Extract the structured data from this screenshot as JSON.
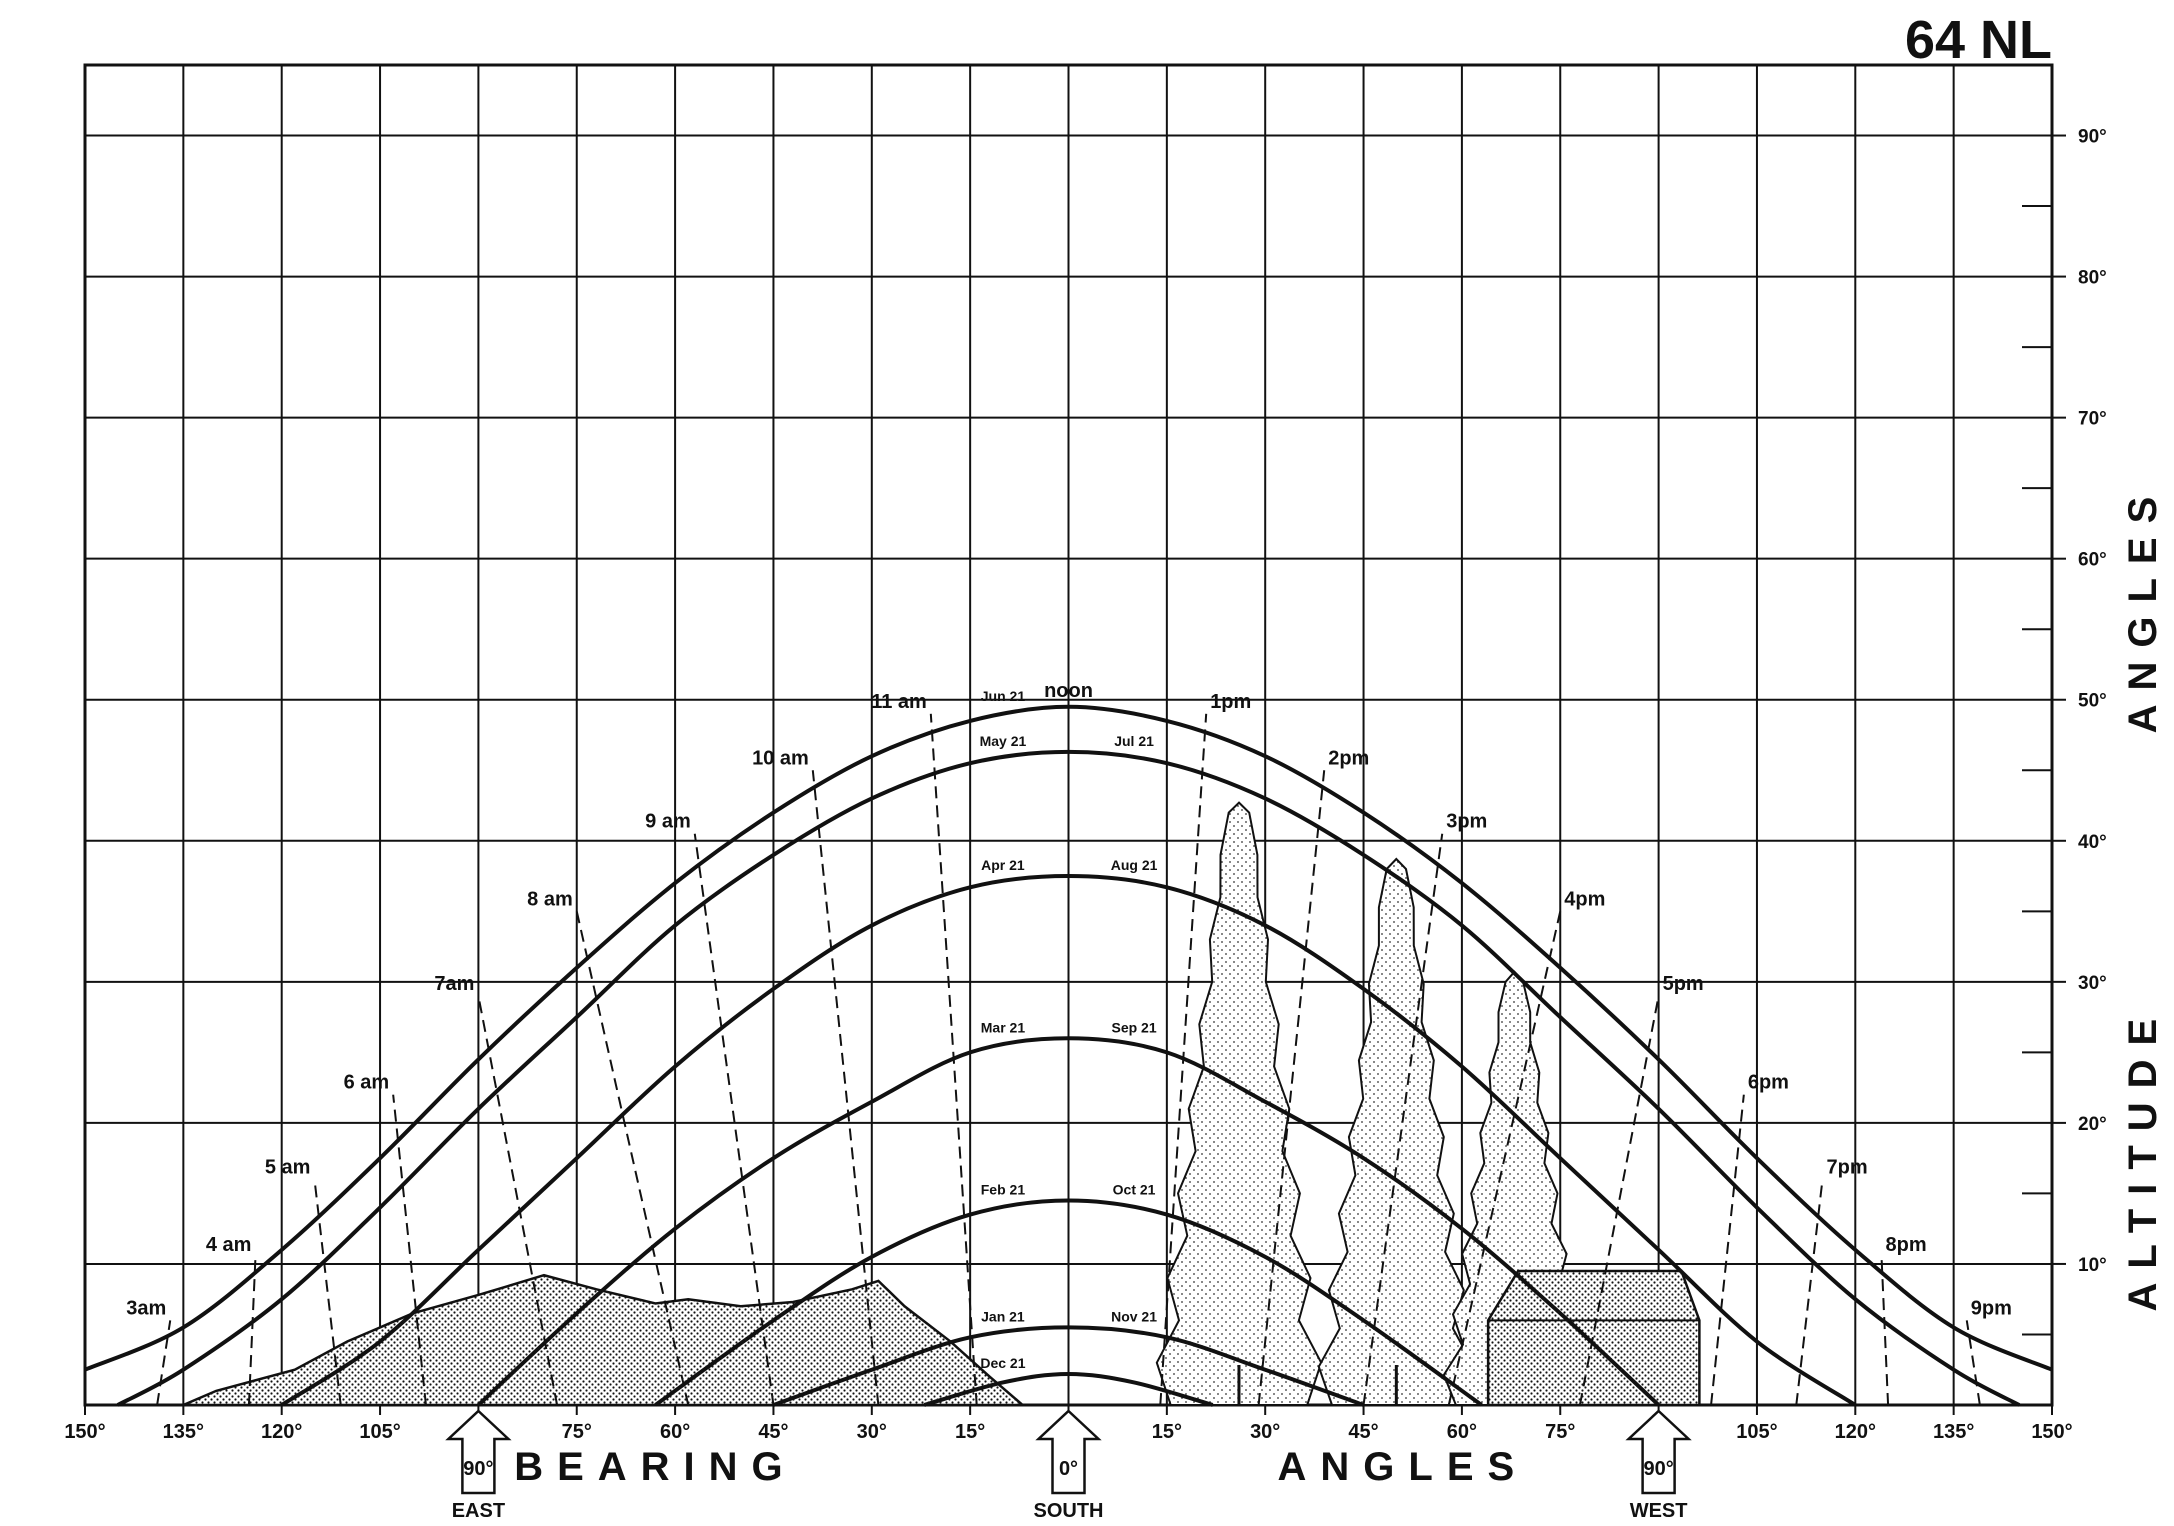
{
  "chart_data": {
    "type": "line",
    "title": "64 NL",
    "xlabel": "BEARING ANGLES",
    "ylabel": "ALTITUDE ANGLES",
    "xlim": [
      -150,
      150
    ],
    "ylim": [
      0,
      95
    ],
    "grid": true,
    "x_tick_labels": [
      "150°",
      "135°",
      "120°",
      "105°",
      "90°",
      "75°",
      "60°",
      "45°",
      "30°",
      "15°",
      "0°",
      "15°",
      "30°",
      "45°",
      "60°",
      "75°",
      "90°",
      "105°",
      "120°",
      "135°",
      "150°"
    ],
    "y_tick_labels": [
      "10°",
      "20°",
      "30°",
      "40°",
      "50°",
      "60°",
      "70°",
      "80°",
      "90°"
    ],
    "y_ticks": [
      10,
      20,
      30,
      40,
      50,
      60,
      70,
      80,
      90
    ],
    "directions": [
      {
        "label": "EAST",
        "value": "90°",
        "bearing": -90
      },
      {
        "label": "SOUTH",
        "value": "0°",
        "bearing": 0
      },
      {
        "label": "WEST",
        "value": "90°",
        "bearing": 90
      }
    ],
    "series": [
      {
        "left_label": "Jun 21",
        "right_label": "noon",
        "noon_altitude": 49.5,
        "x": [
          -150,
          -135,
          -120,
          -105,
          -90,
          -75,
          -60,
          -45,
          -30,
          -15,
          0,
          15,
          30,
          45,
          60,
          75,
          90,
          105,
          120,
          135,
          150
        ],
        "y": [
          2.5,
          5.5,
          11,
          17.5,
          24.5,
          31,
          37,
          42,
          46,
          48.5,
          49.5,
          48.5,
          46,
          42,
          37,
          31,
          24.5,
          17.5,
          11,
          5.5,
          2.5
        ]
      },
      {
        "left_label": "May 21",
        "right_label": "Jul 21",
        "noon_altitude": 46.3,
        "x": [
          -145,
          -135,
          -120,
          -105,
          -90,
          -75,
          -60,
          -45,
          -30,
          -15,
          0,
          15,
          30,
          45,
          60,
          75,
          90,
          105,
          120,
          135,
          145
        ],
        "y": [
          0,
          2.5,
          7.5,
          14,
          21,
          27.5,
          34,
          39,
          43,
          45.5,
          46.3,
          45.5,
          43,
          39,
          34,
          27.5,
          21,
          14,
          7.5,
          2.5,
          0
        ]
      },
      {
        "left_label": "Apr 21",
        "right_label": "Aug 21",
        "noon_altitude": 37.5,
        "x": [
          -120,
          -105,
          -90,
          -75,
          -60,
          -45,
          -30,
          -15,
          0,
          15,
          30,
          45,
          60,
          75,
          90,
          105,
          120
        ],
        "y": [
          0,
          4.5,
          11,
          17.5,
          24,
          29.5,
          34,
          36.7,
          37.5,
          36.7,
          34,
          29.5,
          24,
          17.5,
          11,
          4.5,
          0
        ]
      },
      {
        "left_label": "Mar 21",
        "right_label": "Sep 21",
        "noon_altitude": 26,
        "x": [
          -90,
          -75,
          -60,
          -45,
          -30,
          -15,
          0,
          15,
          30,
          45,
          60,
          75,
          90
        ],
        "y": [
          0,
          6.5,
          12.5,
          17.5,
          21.5,
          25,
          26,
          25,
          21.5,
          17.5,
          12.5,
          6.5,
          0
        ]
      },
      {
        "left_label": "Feb 21",
        "right_label": "Oct 21",
        "noon_altitude": 14.5,
        "x": [
          -63,
          -45,
          -30,
          -15,
          0,
          15,
          30,
          45,
          63
        ],
        "y": [
          0,
          6,
          10.5,
          13.5,
          14.5,
          13.5,
          10.5,
          6,
          0
        ]
      },
      {
        "left_label": "Jan 21",
        "right_label": "Nov 21",
        "noon_altitude": 5.5,
        "x": [
          -45,
          -30,
          -15,
          0,
          15,
          30,
          45
        ],
        "y": [
          0,
          2.5,
          4.8,
          5.5,
          4.8,
          2.5,
          0
        ]
      },
      {
        "left_label": "Dec 21",
        "right_label": "",
        "noon_altitude": 2.2,
        "x": [
          -22,
          -10,
          0,
          10,
          22
        ],
        "y": [
          0,
          1.6,
          2.2,
          1.6,
          0
        ]
      }
    ],
    "hour_lines": [
      {
        "label": "3am",
        "x1": -139,
        "y1": 0,
        "x2": -137,
        "y2": 6
      },
      {
        "label": "4 am",
        "x1": -125,
        "y1": 0,
        "x2": -124,
        "y2": 10.5
      },
      {
        "label": "5 am",
        "x1": -111,
        "y1": 0,
        "x2": -115,
        "y2": 16
      },
      {
        "label": "6 am",
        "x1": -98,
        "y1": 0,
        "x2": -103,
        "y2": 22
      },
      {
        "label": "7am",
        "x1": -78,
        "y1": 0,
        "x2": -90,
        "y2": 29
      },
      {
        "label": "8 am",
        "x1": -58,
        "y1": 0,
        "x2": -75,
        "y2": 35
      },
      {
        "label": "9 am",
        "x1": -45,
        "y1": 0,
        "x2": -57,
        "y2": 40.5
      },
      {
        "label": "10 am",
        "x1": -29,
        "y1": 0,
        "x2": -39,
        "y2": 45
      },
      {
        "label": "11 am",
        "x1": -14,
        "y1": 0,
        "x2": -21,
        "y2": 49
      },
      {
        "label": "1pm",
        "x1": 14,
        "y1": 0,
        "x2": 21,
        "y2": 49
      },
      {
        "label": "2pm",
        "x1": 29,
        "y1": 0,
        "x2": 39,
        "y2": 45
      },
      {
        "label": "3pm",
        "x1": 45,
        "y1": 0,
        "x2": 57,
        "y2": 40.5
      },
      {
        "label": "4pm",
        "x1": 58,
        "y1": 0,
        "x2": 75,
        "y2": 35
      },
      {
        "label": "5pm",
        "x1": 78,
        "y1": 0,
        "x2": 90,
        "y2": 29
      },
      {
        "label": "6pm",
        "x1": 98,
        "y1": 0,
        "x2": 103,
        "y2": 22
      },
      {
        "label": "7pm",
        "x1": 111,
        "y1": 0,
        "x2": 115,
        "y2": 16
      },
      {
        "label": "8pm",
        "x1": 125,
        "y1": 0,
        "x2": 124,
        "y2": 10.5
      },
      {
        "label": "9pm",
        "x1": 139,
        "y1": 0,
        "x2": 137,
        "y2": 6
      }
    ]
  }
}
